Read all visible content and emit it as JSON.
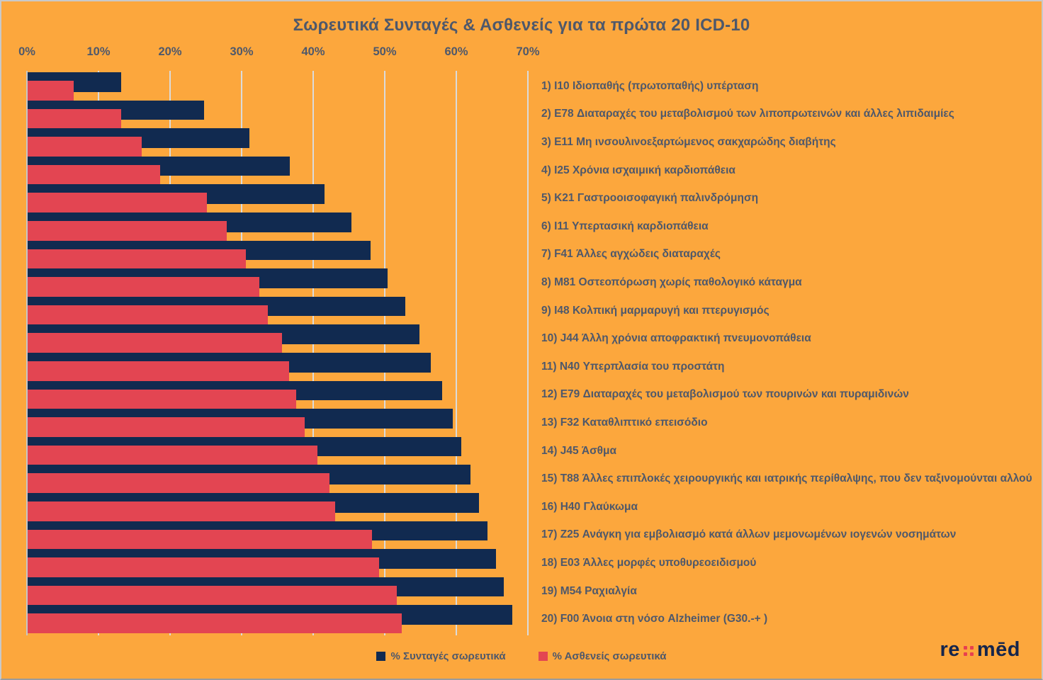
{
  "title": "Σωρευτικά Συνταγές & Ασθενείς για τα πρώτα 20  ICD-10",
  "colors": {
    "background": "#FCA73D",
    "navy": "#112A50",
    "red": "#E34552",
    "gridline": "#DBDBDB",
    "text": "#4E586B",
    "logo_navy": "#15254C",
    "logo_red": "#E8404F"
  },
  "x_axis": {
    "ticks": [
      "0%",
      "10%",
      "20%",
      "30%",
      "40%",
      "50%",
      "60%",
      "70%"
    ]
  },
  "legend": {
    "items": [
      {
        "label": "% Συνταγές σωρευτικά",
        "color": "#112A50"
      },
      {
        "label": "% Ασθενείς σωρευτικά",
        "color": "#E34552"
      }
    ]
  },
  "logo": {
    "part1": "re",
    "part2": "mēd"
  },
  "chart_data": {
    "type": "bar",
    "orientation": "horizontal",
    "title": "Σωρευτικά Συνταγές & Ασθενείς για τα πρώτα 20  ICD-10",
    "xlabel": "",
    "ylabel": "",
    "xlim": [
      0,
      70
    ],
    "grid": true,
    "legend_position": "bottom",
    "categories": [
      "1) I10 Ιδιοπαθής (πρωτοπαθής) υπέρταση",
      "2) E78 Διαταραχές του μεταβολισμού των λιποπρωτεινών και άλλες λιπιδαιμίες",
      "3) E11 Μη ινσουλινοεξαρτώμενος σακχαρώδης διαβήτης",
      "4) I25 Χρόνια ισχαιμική καρδιοπάθεια",
      "5) K21 Γαστροοισοφαγική παλινδρόμηση",
      "6) I11 Υπερτασική καρδιοπάθεια",
      "7) F41 Άλλες αγχώδεις διαταραχές",
      "8) M81 Οστεοπόρωση χωρίς παθολογικό κάταγμα",
      "9) I48 Κολπική μαρμαρυγή και πτερυγισμός",
      "10) J44 Άλλη χρόνια αποφρακτική πνευμονοπάθεια",
      "11) N40 Υπερπλασία του προστάτη",
      "12) E79 Διαταραχές του μεταβολισμού των πουρινών και πυραμιδινών",
      "13) F32 Καταθλιπτικό επεισόδιο",
      "14) J45 Άσθμα",
      "15) T88 Άλλες επιπλοκές χειρουργικής και ιατρικής περίθαλψης, που δεν ταξινομούνται αλλού",
      "16) H40 Γλαύκωμα",
      "17) Z25 Ανάγκη για εμβολιασμό κατά άλλων μεμονωμένων ιογενών νοσημάτων",
      "18) E03 Άλλες μορφές υποθυρεοειδισμού",
      "19) M54 Ραχιαλγία",
      "20) F00 Άνοια στη νόσο Alzheimer (G30.-+ )"
    ],
    "series": [
      {
        "name": "% Συνταγές σωρευτικά",
        "color": "#112A50",
        "values": [
          13.1,
          24.7,
          31.0,
          36.6,
          41.5,
          45.2,
          47.9,
          50.3,
          52.8,
          54.8,
          56.3,
          57.9,
          59.4,
          60.6,
          61.9,
          63.1,
          64.3,
          65.4,
          66.5,
          67.7
        ]
      },
      {
        "name": "% Ασθενείς σωρευτικά",
        "color": "#E34552",
        "values": [
          6.4,
          13.1,
          15.9,
          18.5,
          25.0,
          27.8,
          30.5,
          32.4,
          33.6,
          35.5,
          36.5,
          37.5,
          38.7,
          40.5,
          42.2,
          43.0,
          48.1,
          49.1,
          51.6,
          52.3
        ]
      }
    ]
  }
}
